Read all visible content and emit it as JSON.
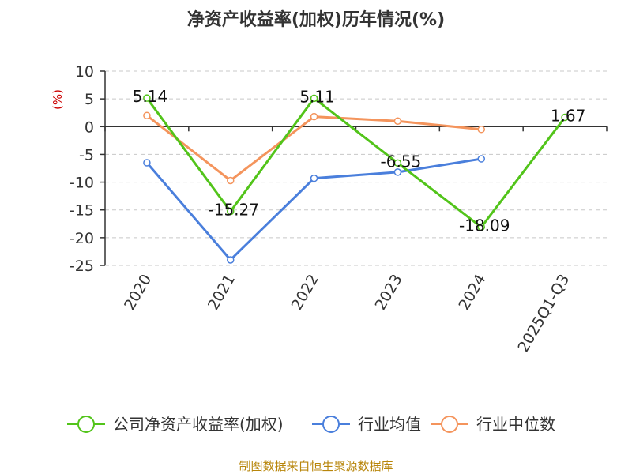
{
  "chart_data": {
    "type": "line",
    "title": "净资产收益率(加权)历年情况(%)",
    "ylabel": "(%)",
    "ylim": [
      -25,
      10
    ],
    "yticks": [
      10,
      5,
      0,
      -5,
      -10,
      -15,
      -20,
      -25
    ],
    "categories": [
      "2020",
      "2021",
      "2022",
      "2023",
      "2024",
      "2025Q1-Q3"
    ],
    "grid": true,
    "legend_position": "bottom",
    "series": [
      {
        "name": "公司净资产收益率(加权)",
        "color": "#52c41a",
        "values": [
          5.14,
          -15.27,
          5.11,
          -6.55,
          -18.09,
          1.67
        ],
        "labels": [
          "5.14",
          "-15.27",
          "5.11",
          "-6.55",
          "-18.09",
          "1.67"
        ]
      },
      {
        "name": "行业均值",
        "color": "#4a7fdc",
        "values": [
          -6.5,
          -24.0,
          -9.3,
          -8.2,
          -5.8,
          null
        ]
      },
      {
        "name": "行业中位数",
        "color": "#f4945c",
        "values": [
          2.0,
          -9.7,
          1.8,
          1.0,
          -0.5,
          null
        ]
      }
    ]
  },
  "footer": {
    "source": "制图数据来自恒生聚源数据库"
  }
}
